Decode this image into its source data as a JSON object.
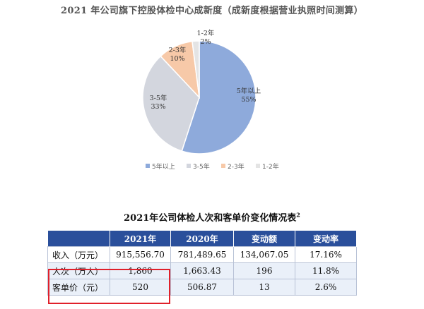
{
  "chart_data": {
    "type": "pie",
    "title": "2021 年公司旗下控股体检中心成新度（成新度根据营业执照时间测算）",
    "slices": [
      {
        "label": "5年以上",
        "value": 55,
        "value_label": "55%",
        "color": "#8eaadb"
      },
      {
        "label": "3-5年",
        "value": 33,
        "value_label": "33%",
        "color": "#d3d6de"
      },
      {
        "label": "2-3年",
        "value": 10,
        "value_label": "10%",
        "color": "#f7c9a8"
      },
      {
        "label": "1-2年",
        "value": 2,
        "value_label": "2%",
        "color": "#e4e4e4"
      }
    ],
    "legend": [
      "5年以上",
      "3-5年",
      "2-3年",
      "1-2年"
    ],
    "legend_position": "bottom"
  },
  "table": {
    "title": "2021年公司体检人次和客单价变化情况表",
    "title_sup": "2",
    "header": [
      "",
      "2021年",
      "2020年",
      "变动额",
      "变动率"
    ],
    "rows": [
      [
        "收入（万元）",
        "915,556.70",
        "781,489.65",
        "134,067.05",
        "17.16%"
      ],
      [
        "人次（万人）",
        "1,860",
        "1,663.43",
        "196",
        "11.8%"
      ],
      [
        "客单价（元）",
        "520",
        "506.87",
        "13",
        "2.6%"
      ]
    ],
    "colors": {
      "header": "#2a4f9b",
      "highlight": "#e0202a"
    }
  }
}
